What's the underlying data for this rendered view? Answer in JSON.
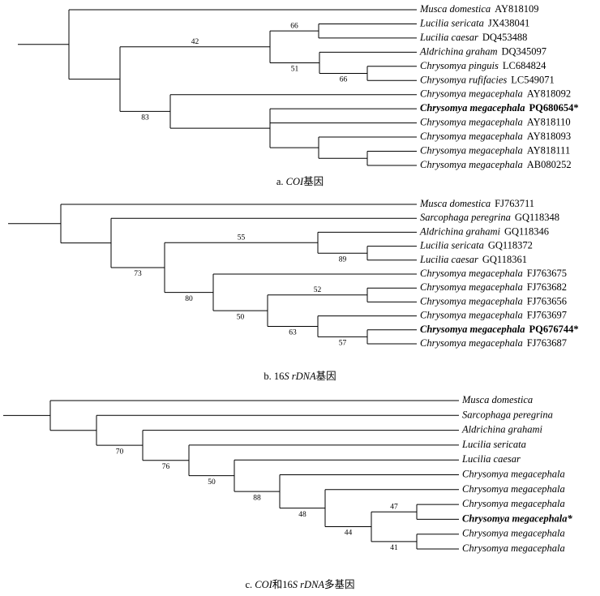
{
  "trees": [
    {
      "caption": [
        {
          "text": "a. "
        },
        {
          "text": "COI",
          "italic": true
        },
        {
          "text": "基因"
        }
      ],
      "leaves": [
        {
          "species": "Musca domestica",
          "accession": "AY818109"
        },
        {
          "species": "Lucilia sericata",
          "accession": "JX438041"
        },
        {
          "species": "Lucilia caesar",
          "accession": "DQ453488"
        },
        {
          "species": "Aldrichina graham",
          "accession": "DQ345097"
        },
        {
          "species": "Chrysomya pinguis",
          "accession": "LC684824"
        },
        {
          "species": "Chrysomya rufifacies",
          "accession": "LC549071"
        },
        {
          "species": "Chrysomya megacephala",
          "accession": "AY818092"
        },
        {
          "species": "Chrysomya megacephala",
          "accession": "PQ680654*",
          "bold": true
        },
        {
          "species": "Chrysomya megacephala",
          "accession": "AY818110"
        },
        {
          "species": "Chrysomya megacephala",
          "accession": "AY818093"
        },
        {
          "species": "Chrysomya megacephala",
          "accession": "AY818111"
        },
        {
          "species": "Chrysomya megacephala",
          "accession": "AB080252"
        }
      ],
      "bootstraps": [
        42,
        66,
        51,
        66,
        83
      ]
    },
    {
      "caption": [
        {
          "text": "b. 16"
        },
        {
          "text": "S rDNA",
          "italic": true
        },
        {
          "text": "基因"
        }
      ],
      "leaves": [
        {
          "species": "Musca domestica",
          "accession": "FJ763711"
        },
        {
          "species": "Sarcophaga peregrina",
          "accession": "GQ118348"
        },
        {
          "species": "Aldrichina grahami",
          "accession": "GQ118346"
        },
        {
          "species": "Lucilia sericata",
          "accession": "GQ118372"
        },
        {
          "species": "Lucilia caesar",
          "accession": "GQ118361"
        },
        {
          "species": "Chrysomya megacephala",
          "accession": "FJ763675"
        },
        {
          "species": "Chrysomya megacephala",
          "accession": "FJ763682"
        },
        {
          "species": "Chrysomya megacephala",
          "accession": "FJ763656"
        },
        {
          "species": "Chrysomya megacephala",
          "accession": "FJ763697"
        },
        {
          "species": "Chrysomya megacephala",
          "accession": "PQ676744*",
          "bold": true
        },
        {
          "species": "Chrysomya megacephala",
          "accession": "FJ763687"
        }
      ],
      "bootstraps": [
        55,
        89,
        73,
        80,
        52,
        50,
        63,
        57
      ]
    },
    {
      "caption": [
        {
          "text": "c. "
        },
        {
          "text": "COI",
          "italic": true
        },
        {
          "text": "和16"
        },
        {
          "text": "S rDNA",
          "italic": true
        },
        {
          "text": "多基因"
        }
      ],
      "leaves": [
        {
          "species": "Musca domestica"
        },
        {
          "species": "Sarcophaga peregrina"
        },
        {
          "species": "Aldrichina grahami"
        },
        {
          "species": "Lucilia sericata"
        },
        {
          "species": "Lucilia caesar"
        },
        {
          "species": "Chrysomya megacephala"
        },
        {
          "species": "Chrysomya megacephala"
        },
        {
          "species": "Chrysomya megacephala"
        },
        {
          "species": "Chrysomya megacephala*",
          "bold": true
        },
        {
          "species": "Chrysomya megacephala"
        },
        {
          "species": "Chrysomya megacephala"
        }
      ],
      "bootstraps": [
        70,
        76,
        50,
        88,
        48,
        47,
        44,
        41
      ]
    }
  ]
}
